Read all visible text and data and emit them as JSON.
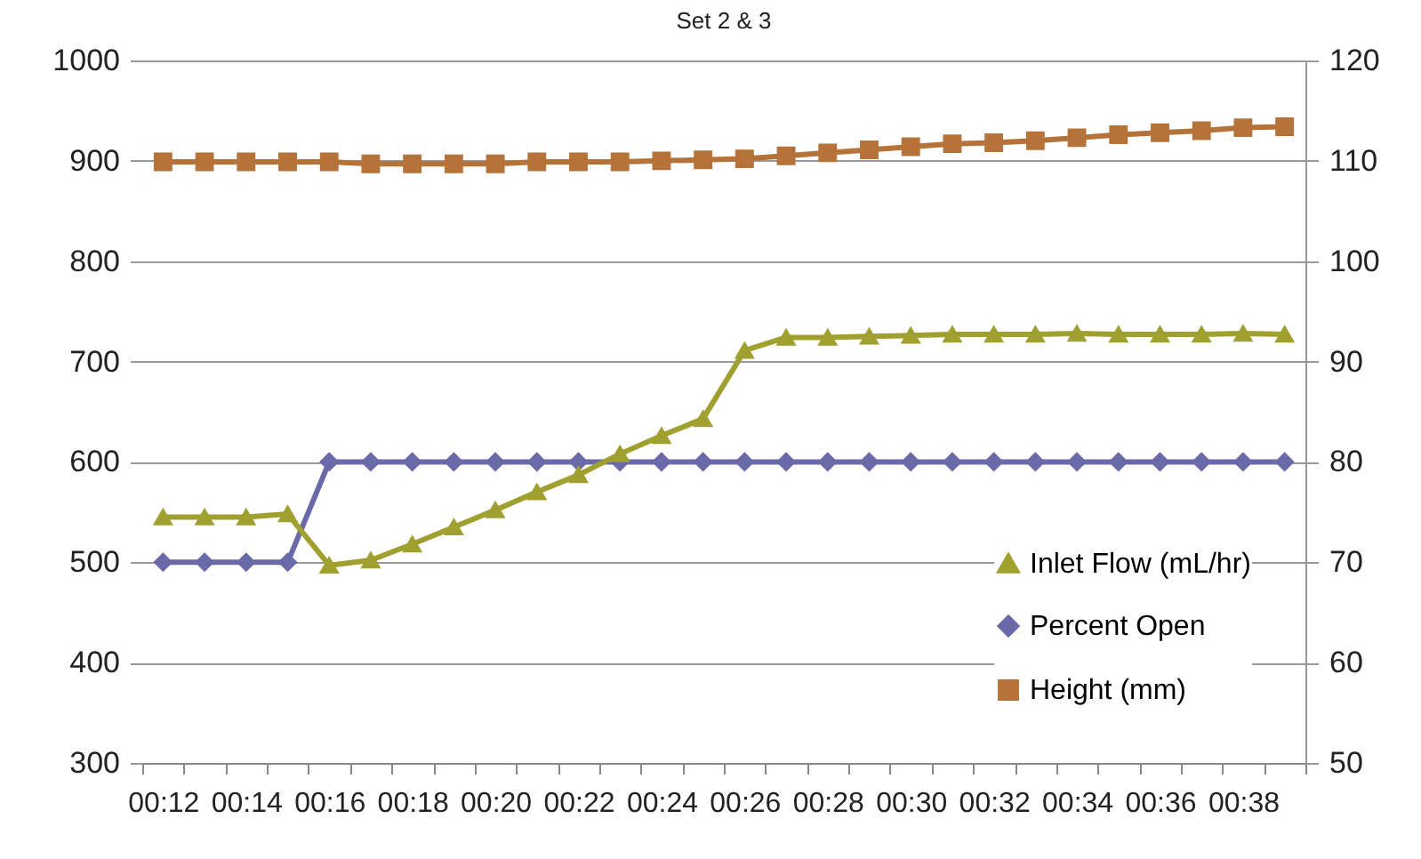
{
  "chart_data": {
    "type": "line",
    "title": "Set 2 & 3",
    "categories": [
      "00:12",
      null,
      "00:14",
      null,
      "00:16",
      null,
      "00:18",
      null,
      "00:20",
      null,
      "00:22",
      null,
      "00:24",
      null,
      "00:26",
      null,
      "00:28",
      null,
      "00:30",
      null,
      "00:32",
      null,
      "00:34",
      null,
      "00:36",
      null,
      "00:38",
      null
    ],
    "series": [
      {
        "name": "Inlet Flow (mL/hr)",
        "color": "#a0a030",
        "marker": "triangle",
        "values": [
          545,
          545,
          545,
          548,
          497,
          502,
          518,
          535,
          552,
          570,
          587,
          608,
          626,
          643,
          711,
          724,
          724,
          725,
          726,
          727,
          727,
          727,
          728,
          727,
          727,
          727,
          728,
          727
        ]
      },
      {
        "name": "Percent Open",
        "color": "#6a6aa8",
        "marker": "diamond",
        "axis": "y2",
        "values": [
          70,
          70,
          70,
          70,
          80,
          80,
          80,
          80,
          80,
          80,
          80,
          80,
          80,
          80,
          80,
          80,
          80,
          80,
          80,
          80,
          80,
          80,
          80,
          80,
          80,
          80,
          80,
          80
        ]
      },
      {
        "name": "Height (mm)",
        "color": "#b5733a",
        "marker": "square",
        "axis": "y2",
        "values": [
          109.9,
          109.9,
          109.9,
          109.9,
          109.9,
          109.7,
          109.7,
          109.7,
          109.7,
          109.9,
          109.9,
          109.9,
          110.0,
          110.1,
          110.2,
          110.5,
          110.8,
          111.1,
          111.4,
          111.7,
          111.8,
          112.0,
          112.3,
          112.6,
          112.8,
          113.0,
          113.3,
          113.4
        ]
      }
    ],
    "ylim": [
      300,
      1000
    ],
    "yticks": [
      300,
      400,
      500,
      600,
      700,
      800,
      900,
      1000
    ],
    "y2lim": [
      50,
      120
    ],
    "y2ticks": [
      50,
      60,
      70,
      80,
      90,
      100,
      110,
      120
    ],
    "grid": "y",
    "legend": "bottom right",
    "line_style": "solid"
  }
}
